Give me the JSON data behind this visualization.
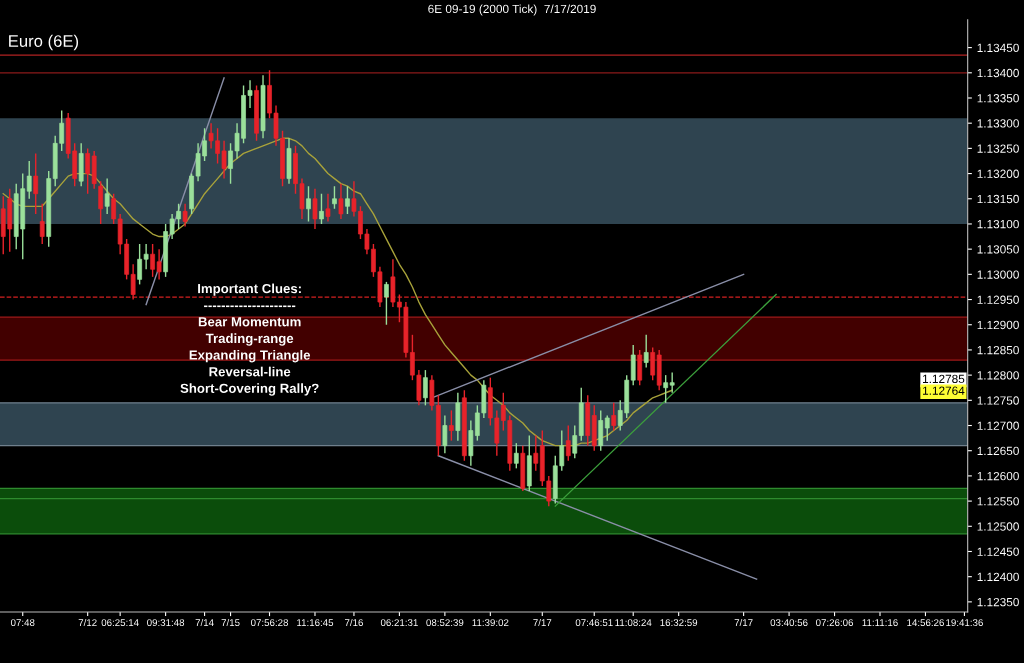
{
  "chart_data": {
    "type": "candlestick",
    "title": "6E 09-19 (2000 Tick)  7/17/2019",
    "subtitle": "Euro (6E)",
    "annotations": [
      "Important Clues:\n---------------------\nBear Momentum\nTrading-range\nExpanding Triangle\nReversal-line\nShort-Covering Rally?",
      "1.12785",
      "1.12764"
    ],
    "categories": [
      null,
      null,
      null,
      "07:48",
      null,
      null,
      null,
      null,
      null,
      null,
      null,
      null,
      null,
      "7/12",
      null,
      null,
      null,
      null,
      "06:25:14",
      null,
      null,
      null,
      null,
      null,
      null,
      "09:31:48",
      null,
      null,
      null,
      null,
      null,
      "7/14",
      null,
      null,
      null,
      "7/15",
      null,
      null,
      null,
      null,
      null,
      "07:56:28",
      null,
      null,
      null,
      null,
      null,
      null,
      "11:16:45",
      null,
      null,
      null,
      null,
      null,
      "7/16",
      null,
      null,
      null,
      null,
      null,
      null,
      "06:21:31",
      null,
      null,
      null,
      null,
      null,
      null,
      "08:52:39",
      null,
      null,
      null,
      null,
      null,
      null,
      "11:39:02",
      null,
      null,
      null,
      null,
      null,
      null,
      null,
      "7/17",
      null,
      null,
      null,
      null,
      null,
      null,
      null,
      "07:46:51",
      null,
      null,
      null,
      null,
      null,
      "11:08:24",
      null,
      null,
      null,
      null,
      null,
      null,
      "16:32:59",
      null,
      null,
      null,
      null,
      null,
      null,
      null,
      null,
      null,
      "7/17",
      null,
      null,
      null,
      null,
      null,
      null,
      "03:40:56",
      null,
      null,
      null,
      null,
      null,
      null,
      "07:26:06",
      null,
      null,
      null,
      null,
      null,
      null,
      "11:11:16",
      null,
      null,
      null,
      null,
      null,
      null,
      "14:56:26",
      null,
      null,
      null,
      null,
      null,
      "19:41:36"
    ],
    "ohlc": [
      [
        1.1313,
        1.13155,
        1.1304,
        1.13075
      ],
      [
        1.1315,
        1.1317,
        1.13045,
        1.1309
      ],
      [
        1.13075,
        1.1318,
        1.1305,
        1.1316
      ],
      [
        1.1309,
        1.132,
        1.1303,
        1.1317
      ],
      [
        1.13165,
        1.13225,
        1.1315,
        1.13195
      ],
      [
        1.13195,
        1.1324,
        1.1312,
        1.1316
      ],
      [
        1.13105,
        1.1314,
        1.1306,
        1.13075
      ],
      [
        1.13075,
        1.13205,
        1.13055,
        1.1319
      ],
      [
        1.1319,
        1.13275,
        1.13175,
        1.1326
      ],
      [
        1.1326,
        1.13325,
        1.13245,
        1.133
      ],
      [
        1.1331,
        1.1332,
        1.1323,
        1.1324
      ],
      [
        1.13245,
        1.1326,
        1.13175,
        1.1319
      ],
      [
        1.13185,
        1.1326,
        1.13175,
        1.1324
      ],
      [
        1.1324,
        1.1325,
        1.1316,
        1.132
      ],
      [
        1.13235,
        1.13245,
        1.1317,
        1.1318
      ],
      [
        1.13175,
        1.13185,
        1.131,
        1.1313
      ],
      [
        1.13135,
        1.1319,
        1.1312,
        1.1316
      ],
      [
        1.1315,
        1.1316,
        1.131,
        1.1311
      ],
      [
        1.1311,
        1.1312,
        1.1304,
        1.1306
      ],
      [
        1.1306,
        1.1307,
        1.1299,
        1.13
      ],
      [
        1.13,
        1.1302,
        1.1295,
        1.1296
      ],
      [
        1.1299,
        1.1306,
        1.1298,
        1.1303
      ],
      [
        1.1303,
        1.1306,
        1.1301,
        1.1304
      ],
      [
        1.1304,
        1.1306,
        1.12995,
        1.1301
      ],
      [
        1.13025,
        1.1305,
        1.1299,
        1.13005
      ],
      [
        1.13005,
        1.131,
        1.12995,
        1.13085
      ],
      [
        1.1308,
        1.1312,
        1.1307,
        1.1311
      ],
      [
        1.1311,
        1.1314,
        1.1309,
        1.13125
      ],
      [
        1.13125,
        1.1314,
        1.13095,
        1.13105
      ],
      [
        1.1313,
        1.132,
        1.1312,
        1.13195
      ],
      [
        1.13195,
        1.1326,
        1.13185,
        1.1324
      ],
      [
        1.13235,
        1.1329,
        1.13225,
        1.13265
      ],
      [
        1.1328,
        1.133,
        1.1325,
        1.13265
      ],
      [
        1.13265,
        1.1329,
        1.1322,
        1.1324
      ],
      [
        1.13245,
        1.13265,
        1.1319,
        1.1321
      ],
      [
        1.1321,
        1.1326,
        1.1318,
        1.13245
      ],
      [
        1.13245,
        1.133,
        1.1323,
        1.1328
      ],
      [
        1.1327,
        1.13375,
        1.1326,
        1.13355
      ],
      [
        1.13355,
        1.13385,
        1.1333,
        1.13365
      ],
      [
        1.13365,
        1.13375,
        1.13265,
        1.1328
      ],
      [
        1.13285,
        1.13395,
        1.1327,
        1.13375
      ],
      [
        1.13375,
        1.13405,
        1.1331,
        1.1332
      ],
      [
        1.1332,
        1.13335,
        1.13255,
        1.1327
      ],
      [
        1.1327,
        1.13285,
        1.13175,
        1.1319
      ],
      [
        1.1319,
        1.1327,
        1.1318,
        1.1325
      ],
      [
        1.1324,
        1.13255,
        1.1316,
        1.1318
      ],
      [
        1.1318,
        1.1319,
        1.1311,
        1.1313
      ],
      [
        1.1313,
        1.13175,
        1.13105,
        1.1315
      ],
      [
        1.1315,
        1.1317,
        1.1309,
        1.1311
      ],
      [
        1.1311,
        1.1316,
        1.131,
        1.13125
      ],
      [
        1.1313,
        1.1316,
        1.13105,
        1.13115
      ],
      [
        1.1314,
        1.13175,
        1.1313,
        1.1315
      ],
      [
        1.1315,
        1.1318,
        1.1311,
        1.1312
      ],
      [
        1.13135,
        1.13175,
        1.1312,
        1.1315
      ],
      [
        1.1315,
        1.13185,
        1.13115,
        1.13125
      ],
      [
        1.13125,
        1.13135,
        1.1307,
        1.1308
      ],
      [
        1.1308,
        1.1309,
        1.1304,
        1.1305
      ],
      [
        1.1305,
        1.1306,
        1.12995,
        1.13005
      ],
      [
        1.13005,
        1.13015,
        1.12935,
        1.12945
      ],
      [
        1.12955,
        1.12985,
        1.129,
        1.1298
      ],
      [
        1.12995,
        1.1303,
        1.12935,
        1.12945
      ],
      [
        1.12945,
        1.1296,
        1.12905,
        1.12935
      ],
      [
        1.12935,
        1.12945,
        1.12835,
        1.12845
      ],
      [
        1.12845,
        1.1288,
        1.1279,
        1.128
      ],
      [
        1.128,
        1.1281,
        1.1274,
        1.1275
      ],
      [
        1.12755,
        1.1281,
        1.1274,
        1.12795
      ],
      [
        1.1279,
        1.128,
        1.1273,
        1.1274
      ],
      [
        1.1274,
        1.1276,
        1.1264,
        1.1266
      ],
      [
        1.1266,
        1.1272,
        1.12645,
        1.127
      ],
      [
        1.127,
        1.1273,
        1.1267,
        1.1269
      ],
      [
        1.1269,
        1.12765,
        1.1267,
        1.12745
      ],
      [
        1.12755,
        1.1277,
        1.1263,
        1.1264
      ],
      [
        1.1264,
        1.1271,
        1.1262,
        1.1269
      ],
      [
        1.1268,
        1.1274,
        1.1267,
        1.12725
      ],
      [
        1.12725,
        1.1279,
        1.12715,
        1.1278
      ],
      [
        1.12775,
        1.12795,
        1.127,
        1.12715
      ],
      [
        1.12715,
        1.1273,
        1.1264,
        1.12665
      ],
      [
        1.1274,
        1.12765,
        1.1269,
        1.1271
      ],
      [
        1.1271,
        1.1272,
        1.1261,
        1.12625
      ],
      [
        1.12625,
        1.12665,
        1.12615,
        1.12645
      ],
      [
        1.12645,
        1.1266,
        1.1257,
        1.12575
      ],
      [
        1.1258,
        1.1268,
        1.1257,
        1.1264
      ],
      [
        1.12645,
        1.1268,
        1.1261,
        1.12625
      ],
      [
        1.1266,
        1.1269,
        1.1258,
        1.1259
      ],
      [
        1.1259,
        1.126,
        1.1254,
        1.1255
      ],
      [
        1.12555,
        1.1264,
        1.12545,
        1.1262
      ],
      [
        1.1262,
        1.1269,
        1.1261,
        1.1266
      ],
      [
        1.1267,
        1.127,
        1.1263,
        1.1264
      ],
      [
        1.12645,
        1.127,
        1.12635,
        1.1268
      ],
      [
        1.1268,
        1.12775,
        1.1267,
        1.12745
      ],
      [
        1.12745,
        1.1276,
        1.1266,
        1.1268
      ],
      [
        1.1272,
        1.1274,
        1.1265,
        1.1266
      ],
      [
        1.1266,
        1.1273,
        1.1265,
        1.1271
      ],
      [
        1.12695,
        1.1272,
        1.1267,
        1.12715
      ],
      [
        1.1272,
        1.12745,
        1.1269,
        1.127
      ],
      [
        1.127,
        1.1275,
        1.1269,
        1.1273
      ],
      [
        1.12725,
        1.128,
        1.12715,
        1.1279
      ],
      [
        1.1279,
        1.1286,
        1.1278,
        1.1284
      ],
      [
        1.1284,
        1.1285,
        1.1278,
        1.1279
      ],
      [
        1.12825,
        1.1288,
        1.12815,
        1.12845
      ],
      [
        1.12845,
        1.12855,
        1.1279,
        1.128
      ],
      [
        1.1284,
        1.1285,
        1.1277,
        1.1278
      ],
      [
        1.12775,
        1.128,
        1.12745,
        1.12785
      ],
      [
        1.1278,
        1.12805,
        1.12765,
        1.12785
      ],
      null,
      null,
      null,
      null,
      null,
      null,
      null,
      null,
      null,
      null,
      null,
      null,
      null,
      null,
      null,
      null,
      null,
      null,
      null,
      null,
      null,
      null,
      null,
      null,
      null,
      null,
      null,
      null,
      null,
      null,
      null,
      null,
      null,
      null,
      null,
      null,
      null,
      null,
      null,
      null,
      null,
      null,
      null,
      null,
      null
    ],
    "colors": [
      "#e8232a",
      "#e8232a",
      "#9be09b",
      "#9be09b",
      "#9be09b",
      "#e8232a",
      "#e8232a",
      "#9be09b",
      "#9be09b",
      "#9be09b",
      "#e8232a",
      "#e8232a",
      "#9be09b",
      "#e8232a",
      "#e8232a",
      "#e8232a",
      "#9be09b",
      "#e8232a",
      "#e8232a",
      "#e8232a",
      "#e8232a",
      "#9be09b",
      "#9be09b",
      "#e8232a",
      "#e8232a",
      "#9be09b",
      "#9be09b",
      "#9be09b",
      "#e8232a",
      "#9be09b",
      "#9be09b",
      "#9be09b",
      "#e8232a",
      "#e8232a",
      "#e8232a",
      "#9be09b",
      "#9be09b",
      "#9be09b",
      "#9be09b",
      "#e8232a",
      "#9be09b",
      "#e8232a",
      "#e8232a",
      "#e8232a",
      "#9be09b",
      "#e8232a",
      "#e8232a",
      "#9be09b",
      "#e8232a",
      "#9be09b",
      "#e8232a",
      "#9be09b",
      "#e8232a",
      "#9be09b",
      "#e8232a",
      "#e8232a",
      "#e8232a",
      "#e8232a",
      "#e8232a",
      "#9be09b",
      "#e8232a",
      "#e8232a",
      "#e8232a",
      "#e8232a",
      "#e8232a",
      "#9be09b",
      "#e8232a",
      "#e8232a",
      "#9be09b",
      "#e8232a",
      "#9be09b",
      "#e8232a",
      "#9be09b",
      "#9be09b",
      "#9be09b",
      "#e8232a",
      "#e8232a",
      "#e8232a",
      "#e8232a",
      "#9be09b",
      "#e8232a",
      "#9be09b",
      "#e8232a",
      "#e8232a",
      "#e8232a",
      "#9be09b",
      "#9be09b",
      "#e8232a",
      "#9be09b",
      "#9be09b",
      "#e8232a",
      "#e8232a",
      "#9be09b",
      "#9be09b",
      "#e8232a",
      "#9be09b",
      "#9be09b",
      "#9be09b",
      "#e8232a",
      "#9be09b",
      "#e8232a",
      "#e8232a",
      "#9be09b",
      "#9be09b",
      null,
      null,
      null,
      null,
      null,
      null,
      null,
      null,
      null,
      null,
      null,
      null,
      null,
      null,
      null,
      null,
      null,
      null,
      null,
      null,
      null,
      null,
      null,
      null,
      null,
      null,
      null,
      null,
      null,
      null,
      null,
      null,
      null,
      null,
      null,
      null,
      null,
      null,
      null,
      null,
      null,
      null,
      null,
      null,
      null
    ],
    "series": [
      {
        "type": "line",
        "color": "#a8a23a",
        "values": [
          1.1316,
          1.1315,
          1.1314,
          1.13135,
          1.13135,
          1.13135,
          1.13135,
          1.1315,
          1.13165,
          1.1318,
          1.13195,
          1.132,
          1.132,
          1.132,
          1.13195,
          1.1318,
          1.13165,
          1.1315,
          1.1314,
          1.13125,
          1.1311,
          1.131,
          1.1309,
          1.1308,
          1.13075,
          1.13075,
          1.1308,
          1.1309,
          1.131,
          1.1312,
          1.1314,
          1.1316,
          1.13175,
          1.1319,
          1.13205,
          1.1322,
          1.1323,
          1.1324,
          1.13245,
          1.1325,
          1.13255,
          1.1326,
          1.13265,
          1.1327,
          1.1327,
          1.13265,
          1.13255,
          1.1324,
          1.1323,
          1.13215,
          1.132,
          1.1319,
          1.1318,
          1.13175,
          1.13165,
          1.1316,
          1.1314,
          1.1312,
          1.13095,
          1.1307,
          1.13045,
          1.1302,
          1.13,
          1.12975,
          1.12945,
          1.1292,
          1.129,
          1.1288,
          1.1286,
          1.12845,
          1.1283,
          1.12815,
          1.128,
          1.1279,
          1.12775,
          1.1276,
          1.1275,
          1.1274,
          1.12725,
          1.12715,
          1.12705,
          1.1269,
          1.1268,
          1.1267,
          1.12665,
          1.1266,
          1.1266,
          1.1266,
          1.1266,
          1.12665,
          1.12665,
          1.1267,
          1.12675,
          1.1268,
          1.1269,
          1.127,
          1.1271,
          1.12725,
          1.12735,
          1.12745,
          1.12755,
          1.1276,
          1.12765,
          1.1277,
          null,
          null,
          null,
          null,
          null,
          null,
          null,
          null,
          null,
          null,
          null,
          null,
          null,
          null,
          null,
          null,
          null,
          null,
          null,
          null,
          null,
          null,
          null,
          null,
          null,
          null,
          null,
          null,
          null,
          null,
          null,
          null,
          null,
          null,
          null,
          null,
          null,
          null,
          null,
          null,
          null,
          null,
          null,
          null,
          null
        ]
      },
      {
        "type": "line",
        "color": "#8a8fa8",
        "values": [
          null,
          null,
          null,
          null,
          null,
          null,
          null,
          null,
          null,
          null,
          null,
          null,
          null,
          null,
          null,
          null,
          null,
          null,
          null,
          null,
          null,
          null,
          1.1294,
          null,
          null,
          null,
          null,
          null,
          null,
          null,
          null,
          null,
          null,
          null,
          1.1339,
          null,
          null,
          null,
          null,
          null,
          null,
          null,
          null,
          null,
          null,
          null,
          null,
          null,
          null,
          null,
          null,
          null,
          null,
          null,
          null,
          null,
          null,
          null,
          null,
          null,
          null,
          null,
          null,
          null,
          null,
          null,
          null,
          null,
          null,
          null,
          null,
          null,
          null,
          null,
          null,
          null,
          null,
          null,
          null,
          null,
          null,
          null,
          null,
          null,
          null,
          null,
          null,
          null,
          null,
          null,
          null,
          null,
          null,
          null,
          null,
          null,
          null,
          null,
          null,
          null,
          null,
          null,
          null,
          null,
          null,
          null,
          null,
          null,
          null,
          null,
          null,
          null,
          null,
          null,
          null,
          null,
          null,
          null,
          null,
          null,
          null,
          null,
          null,
          null,
          null,
          null,
          null,
          null,
          null,
          null,
          null,
          null,
          null,
          null,
          null,
          null,
          null,
          null,
          null,
          null,
          null,
          null,
          null,
          null,
          null,
          null,
          null,
          null,
          null
        ]
      },
      {
        "type": "line",
        "color": "#8a8fa8",
        "values": [
          null,
          null,
          null,
          null,
          null,
          null,
          null,
          null,
          null,
          null,
          null,
          null,
          null,
          null,
          null,
          null,
          null,
          null,
          null,
          null,
          null,
          null,
          null,
          null,
          null,
          null,
          null,
          null,
          null,
          null,
          null,
          null,
          null,
          null,
          null,
          null,
          null,
          null,
          null,
          null,
          null,
          null,
          null,
          null,
          null,
          null,
          null,
          null,
          null,
          null,
          null,
          null,
          null,
          null,
          null,
          null,
          null,
          null,
          null,
          null,
          null,
          null,
          null,
          null,
          null,
          null,
          1.12755,
          null,
          null,
          null,
          null,
          null,
          null,
          null,
          null,
          null,
          null,
          null,
          null,
          null,
          null,
          null,
          null,
          null,
          null,
          null,
          null,
          null,
          null,
          null,
          null,
          null,
          null,
          null,
          null,
          null,
          null,
          null,
          null,
          null,
          null,
          null,
          null,
          null,
          null,
          null,
          null,
          null,
          null,
          null,
          null,
          null,
          null,
          null,
          1.13,
          null,
          null,
          null,
          null,
          null,
          null,
          null,
          null,
          null,
          null,
          null,
          null,
          null,
          null,
          null,
          null,
          null,
          null,
          null,
          null,
          null,
          null,
          null,
          null,
          null,
          null,
          null,
          null,
          null,
          null,
          null,
          null,
          null,
          null
        ]
      },
      {
        "type": "line",
        "color": "#8a8fa8",
        "values": [
          null,
          null,
          null,
          null,
          null,
          null,
          null,
          null,
          null,
          null,
          null,
          null,
          null,
          null,
          null,
          null,
          null,
          null,
          null,
          null,
          null,
          null,
          null,
          null,
          null,
          null,
          null,
          null,
          null,
          null,
          null,
          null,
          null,
          null,
          null,
          null,
          null,
          null,
          null,
          null,
          null,
          null,
          null,
          null,
          null,
          null,
          null,
          null,
          null,
          null,
          null,
          null,
          null,
          null,
          null,
          null,
          null,
          null,
          null,
          null,
          null,
          null,
          null,
          null,
          null,
          null,
          null,
          1.1264,
          null,
          null,
          null,
          null,
          null,
          null,
          null,
          null,
          null,
          null,
          null,
          null,
          null,
          null,
          null,
          null,
          null,
          null,
          null,
          null,
          null,
          null,
          null,
          null,
          null,
          null,
          null,
          null,
          null,
          null,
          null,
          null,
          null,
          null,
          null,
          null,
          null,
          null,
          null,
          null,
          null,
          null,
          null,
          null,
          null,
          null,
          null,
          null,
          1.12395,
          null,
          null,
          null,
          null,
          null,
          null,
          null,
          null,
          null,
          null,
          null,
          null,
          null,
          null,
          null,
          null,
          null,
          null,
          null,
          null,
          null,
          null,
          null,
          null,
          null,
          null,
          null,
          null,
          null,
          null,
          null,
          null
        ]
      },
      {
        "type": "line",
        "color": "#3ca03c",
        "values": [
          null,
          null,
          null,
          null,
          null,
          null,
          null,
          null,
          null,
          null,
          null,
          null,
          null,
          null,
          null,
          null,
          null,
          null,
          null,
          null,
          null,
          null,
          null,
          null,
          null,
          null,
          null,
          null,
          null,
          null,
          null,
          null,
          null,
          null,
          null,
          null,
          null,
          null,
          null,
          null,
          null,
          null,
          null,
          null,
          null,
          null,
          null,
          null,
          null,
          null,
          null,
          null,
          null,
          null,
          null,
          null,
          null,
          null,
          null,
          null,
          null,
          null,
          null,
          null,
          null,
          null,
          null,
          null,
          null,
          null,
          null,
          null,
          null,
          null,
          null,
          null,
          null,
          null,
          null,
          null,
          null,
          null,
          null,
          null,
          null,
          1.1254,
          null,
          null,
          null,
          null,
          null,
          null,
          null,
          null,
          null,
          null,
          null,
          null,
          null,
          null,
          null,
          null,
          null,
          null,
          null,
          null,
          null,
          null,
          null,
          null,
          null,
          null,
          null,
          null,
          null,
          null,
          null,
          null,
          null,
          1.1296,
          null,
          null,
          null,
          null,
          null,
          null,
          null,
          null,
          null,
          null,
          null,
          null,
          null,
          null,
          null,
          null,
          null,
          null,
          null,
          null,
          null,
          null,
          null,
          null,
          null,
          null,
          null,
          null,
          null
        ]
      }
    ],
    "bands": [
      {
        "axis": "y",
        "from": 1.131,
        "to": 1.1331,
        "color": "#2f4450"
      },
      {
        "axis": "y",
        "from": 1.1283,
        "to": 1.12915,
        "color": "#420000"
      },
      {
        "axis": "y",
        "from": 1.1266,
        "to": 1.12745,
        "color": "#2f4450"
      },
      {
        "axis": "y",
        "from": 1.12485,
        "to": 1.12575,
        "color": "#0b4d0b"
      }
    ],
    "ref_lines": [
      {
        "axis": "y",
        "value": 1.13435,
        "color": "#b22222",
        "line_style": "solid"
      },
      {
        "axis": "y",
        "value": 1.134,
        "color": "#8b1a1a",
        "line_style": "solid"
      },
      {
        "axis": "y",
        "value": 1.12955,
        "color": "#d42020",
        "line_style": "dashed"
      },
      {
        "axis": "y",
        "value": 1.12915,
        "color": "#a01818",
        "line_style": "solid"
      },
      {
        "axis": "y",
        "value": 1.1283,
        "color": "#a01818",
        "line_style": "solid"
      },
      {
        "axis": "y",
        "value": 1.12745,
        "color": "#6f7f8c",
        "line_style": "solid"
      },
      {
        "axis": "y",
        "value": 1.1266,
        "color": "#6f7f8c",
        "line_style": "solid"
      },
      {
        "axis": "y",
        "value": 1.12575,
        "color": "#2e8b2e",
        "line_style": "solid"
      },
      {
        "axis": "y",
        "value": 1.12555,
        "color": "#2e8b2e",
        "line_style": "solid"
      },
      {
        "axis": "y",
        "value": 1.12485,
        "color": "#2e8b2e",
        "line_style": "solid"
      }
    ],
    "ylim": [
      1.1233,
      1.13505
    ],
    "yticks": [
      {
        "value": 1.1235,
        "label": "1.12350"
      },
      {
        "value": 1.124,
        "label": "1.12400"
      },
      {
        "value": 1.1245,
        "label": "1.12450"
      },
      {
        "value": 1.125,
        "label": "1.12500"
      },
      {
        "value": 1.1255,
        "label": "1.12550"
      },
      {
        "value": 1.126,
        "label": "1.12600"
      },
      {
        "value": 1.1265,
        "label": "1.12650"
      },
      {
        "value": 1.127,
        "label": "1.12700"
      },
      {
        "value": 1.1275,
        "label": "1.12750"
      },
      {
        "value": 1.128,
        "label": "1.12800"
      },
      {
        "value": 1.1285,
        "label": "1.12850"
      },
      {
        "value": 1.129,
        "label": "1.12900"
      },
      {
        "value": 1.1295,
        "label": "1.12950"
      },
      {
        "value": 1.13,
        "label": "1.13000"
      },
      {
        "value": 1.1305,
        "label": "1.13050"
      },
      {
        "value": 1.131,
        "label": "1.13100"
      },
      {
        "value": 1.1315,
        "label": "1.13150"
      },
      {
        "value": 1.132,
        "label": "1.13200"
      },
      {
        "value": 1.1325,
        "label": "1.13250"
      },
      {
        "value": 1.133,
        "label": "1.13300"
      },
      {
        "value": 1.1335,
        "label": "1.13350"
      },
      {
        "value": 1.134,
        "label": "1.13400"
      },
      {
        "value": 1.1345,
        "label": "1.13450"
      }
    ]
  }
}
